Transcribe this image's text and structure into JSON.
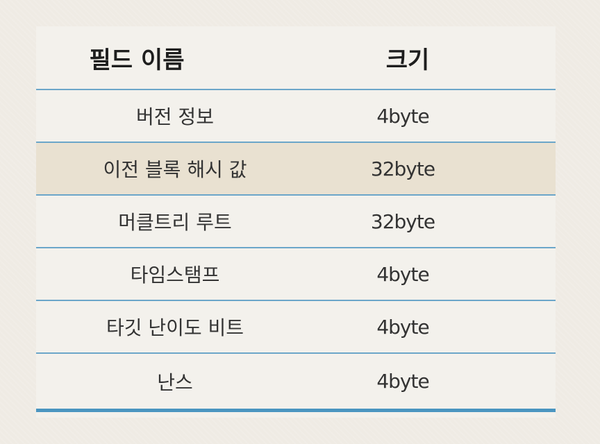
{
  "table": {
    "headers": {
      "field_name": "필드 이름",
      "size": "크기"
    },
    "rows": [
      {
        "field": "버전 정보",
        "size": "4byte",
        "highlight": false
      },
      {
        "field": "이전 블록 해시 값",
        "size": "32byte",
        "highlight": true
      },
      {
        "field": "머클트리 루트",
        "size": "32byte",
        "highlight": false
      },
      {
        "field": "타임스탬프",
        "size": "4byte",
        "highlight": false
      },
      {
        "field": "타깃 난이도 비트",
        "size": "4byte",
        "highlight": false
      },
      {
        "field": "난스",
        "size": "4byte",
        "highlight": false
      }
    ]
  },
  "colors": {
    "background": "#efebe4",
    "card": "#f3f1ec",
    "highlight_row": "#e9e1d1",
    "divider": "#6ba6c9",
    "bottom_rule": "#4a95c0"
  }
}
